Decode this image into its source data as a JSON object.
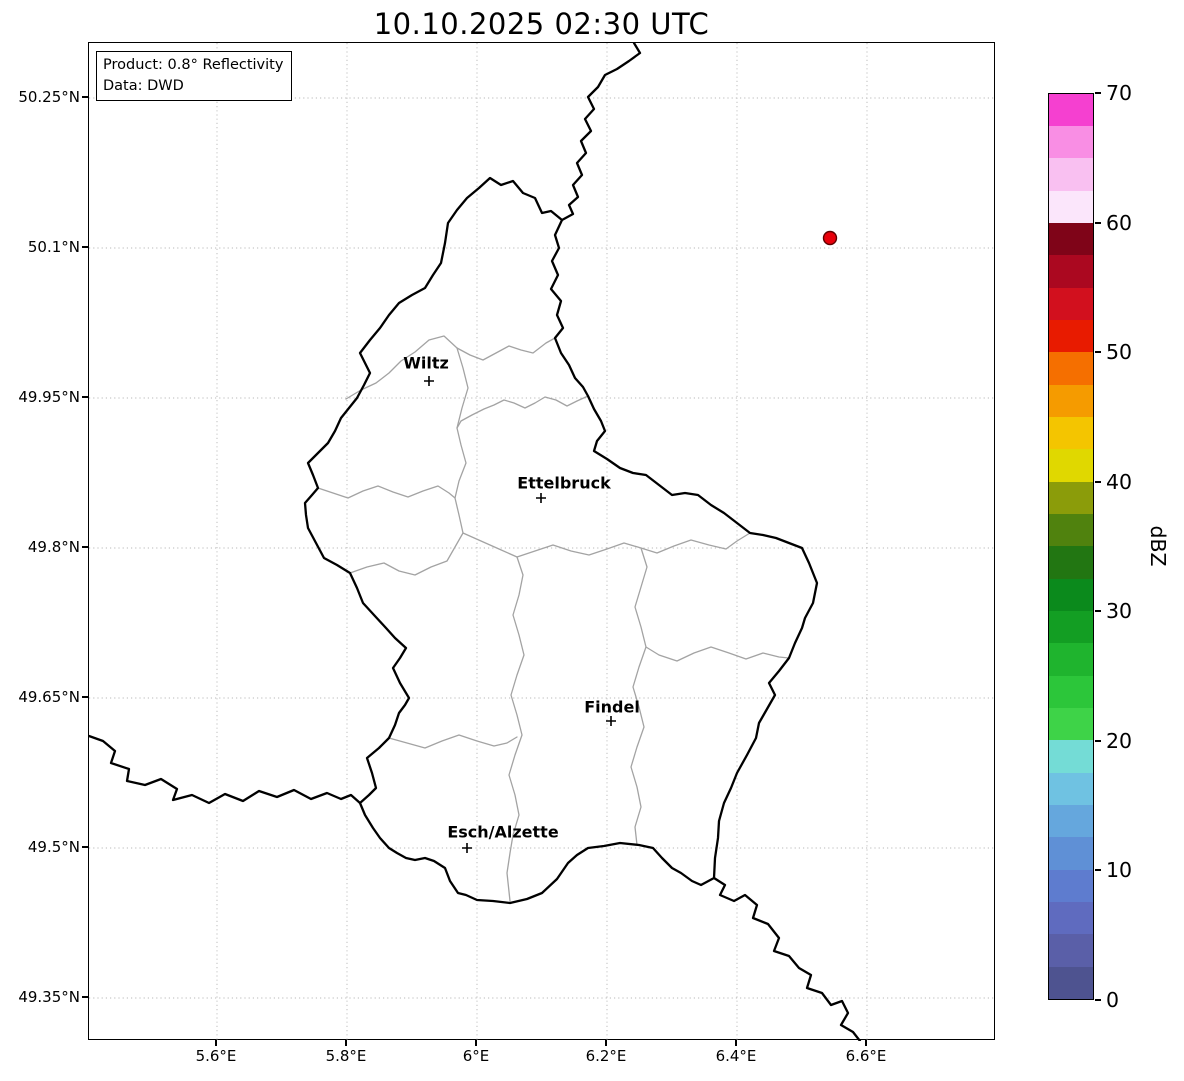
{
  "title": "10.10.2025 02:30 UTC",
  "info_box": {
    "product": "Product: 0.8° Reflectivity",
    "source": "Data: DWD"
  },
  "axes": {
    "y_ticks": [
      "50.25°N",
      "50.1°N",
      "49.95°N",
      "49.8°N",
      "49.65°N",
      "49.5°N",
      "49.35°N"
    ],
    "x_ticks": [
      "5.6°E",
      "5.8°E",
      "6°E",
      "6.2°E",
      "6.4°E",
      "6.6°E"
    ]
  },
  "map": {
    "cities": [
      {
        "name": "Wiltz"
      },
      {
        "name": "Ettelbruck"
      },
      {
        "name": "Findel"
      },
      {
        "name": "Esch/Alzette"
      }
    ],
    "radar_dot_color": "#e8000b",
    "radar_dot_edge_color": "#5f0000",
    "country_border_color": "#000000",
    "district_border_color": "#a3a3a3",
    "grid_color": "#b8b8b8"
  },
  "colorbar": {
    "label": "dBZ",
    "ticks": [
      "0",
      "10",
      "20",
      "30",
      "40",
      "50",
      "60",
      "70"
    ],
    "unit_min": 0,
    "unit_max": 70,
    "colors_bottom_to_top": [
      "#4e5390",
      "#5a5fa8",
      "#5f6bbf",
      "#5e7ccf",
      "#5f90d6",
      "#65a7dd",
      "#6fc2e2",
      "#74dcd6",
      "#3ed348",
      "#2cc63a",
      "#1fb42e",
      "#139e23",
      "#0b8a1c",
      "#227612",
      "#50820e",
      "#8b9c0a",
      "#e0d800",
      "#f4c500",
      "#f59b00",
      "#f56f00",
      "#e81b00",
      "#d2101e",
      "#ab0820",
      "#7f0418",
      "#fbe6fb",
      "#f9c0f1",
      "#f98ee4",
      "#f540d0"
    ]
  }
}
